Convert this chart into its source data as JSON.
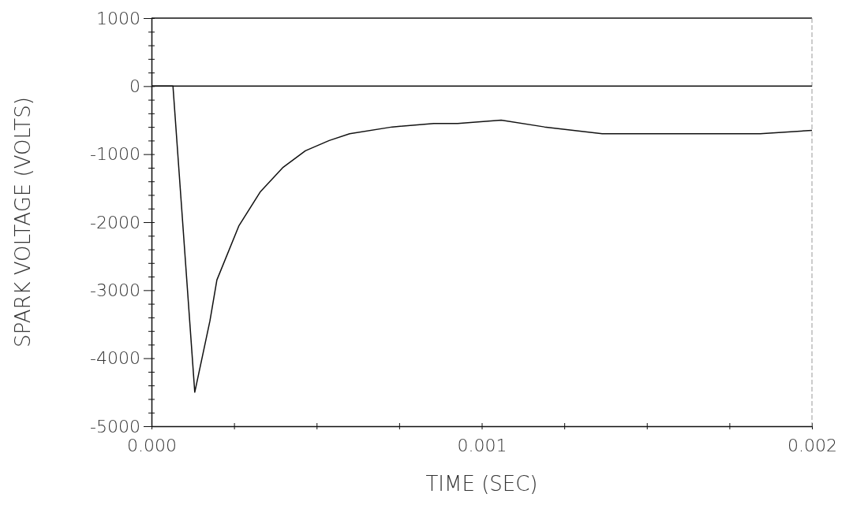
{
  "chart_data": {
    "type": "line",
    "xlabel": "TIME (SEC)",
    "ylabel": "SPARK VOLTAGE (VOLTS)",
    "xlim": [
      0,
      0.002
    ],
    "ylim": [
      -5000,
      1000
    ],
    "xticks": [
      {
        "value": 0,
        "label": "0.000"
      },
      {
        "value": 0.00025,
        "label": null
      },
      {
        "value": 0.0005,
        "label": null
      },
      {
        "value": 0.00075,
        "label": null
      },
      {
        "value": 0.001,
        "label": "0.001"
      },
      {
        "value": 0.00125,
        "label": null
      },
      {
        "value": 0.0015,
        "label": null
      },
      {
        "value": 0.00175,
        "label": null
      },
      {
        "value": 0.002,
        "label": "0.002"
      }
    ],
    "yticks": [
      -5000,
      {
        "value": -4800,
        "label": null
      },
      {
        "value": -4600,
        "label": null
      },
      {
        "value": -4400,
        "label": null
      },
      {
        "value": -4200,
        "label": null
      },
      -4000,
      {
        "value": -3800,
        "label": null
      },
      {
        "value": -3600,
        "label": null
      },
      {
        "value": -3400,
        "label": null
      },
      {
        "value": -3200,
        "label": null
      },
      -3000,
      {
        "value": -2800,
        "label": null
      },
      {
        "value": -2600,
        "label": null
      },
      {
        "value": -2400,
        "label": null
      },
      {
        "value": -2200,
        "label": null
      },
      -2000,
      {
        "value": -1800,
        "label": null
      },
      {
        "value": -1600,
        "label": null
      },
      {
        "value": -1400,
        "label": null
      },
      {
        "value": -1200,
        "label": null
      },
      -1000,
      {
        "value": -800,
        "label": null
      },
      {
        "value": -600,
        "label": null
      },
      {
        "value": -400,
        "label": null
      },
      {
        "value": -200,
        "label": null
      },
      0,
      {
        "value": 200,
        "label": null
      },
      {
        "value": 400,
        "label": null
      },
      {
        "value": 600,
        "label": null
      },
      {
        "value": 800,
        "label": null
      },
      1000
    ],
    "x": [
      0,
      6.5e-05,
      0.000131,
      0.000177,
      0.000198,
      0.000265,
      0.00033,
      0.000397,
      0.000466,
      0.000538,
      0.0006,
      0.000729,
      0.000855,
      0.000927,
      0.001059,
      0.00119,
      0.001365,
      0.001525,
      0.001685,
      0.001843,
      0.002
    ],
    "series": [
      {
        "color": "#111111",
        "values": [
          0,
          0,
          -4500,
          -3450,
          -2850,
          -2050,
          -1550,
          -1200,
          -950,
          -800,
          -700,
          -600,
          -550,
          -550,
          -500,
          -600,
          -700,
          -700,
          -700,
          -700,
          -650
        ]
      }
    ],
    "ref_lines": [
      {
        "axis": "y",
        "value": 0,
        "color": "#111111"
      }
    ],
    "grid": false,
    "marker": "none",
    "line_style": "solid"
  }
}
